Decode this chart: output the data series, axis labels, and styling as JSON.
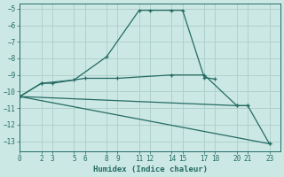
{
  "xlabel": "Humidex (Indice chaleur)",
  "bg_color": "#cce8e4",
  "line_color": "#236b63",
  "grid_color": "#b0d0cc",
  "xlim": [
    0,
    24
  ],
  "ylim": [
    -13.6,
    -4.7
  ],
  "xticks": [
    0,
    2,
    3,
    5,
    6,
    8,
    9,
    11,
    12,
    14,
    15,
    17,
    18,
    20,
    21,
    23
  ],
  "yticks": [
    -5,
    -6,
    -7,
    -8,
    -9,
    -10,
    -11,
    -12,
    -13
  ],
  "lines": [
    {
      "x": [
        0,
        2,
        5,
        8,
        11,
        12,
        14,
        15,
        17,
        18
      ],
      "y": [
        -10.3,
        -9.5,
        -9.3,
        -7.9,
        -5.1,
        -5.1,
        -5.1,
        -5.1,
        -9.15,
        -9.25
      ]
    },
    {
      "x": [
        0,
        2,
        3,
        6,
        9,
        14,
        17,
        20,
        21
      ],
      "y": [
        -10.3,
        -9.5,
        -9.5,
        -9.2,
        -9.2,
        -9.0,
        -9.0,
        -10.85,
        -10.85
      ]
    },
    {
      "x": [
        0,
        23
      ],
      "y": [
        -10.3,
        -13.15
      ]
    },
    {
      "x": [
        0,
        20,
        21,
        23
      ],
      "y": [
        -10.3,
        -10.85,
        -10.85,
        -13.15
      ]
    }
  ]
}
